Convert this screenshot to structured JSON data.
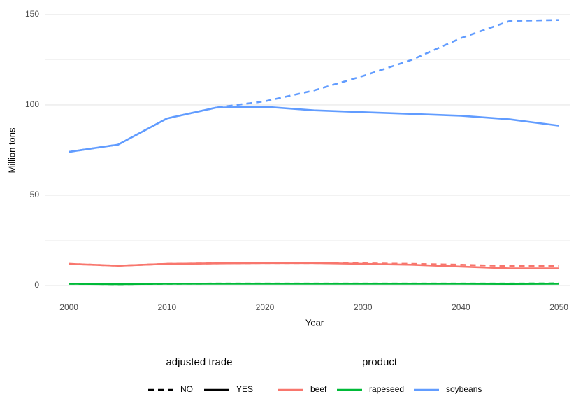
{
  "chart_data": {
    "type": "line",
    "x_label": "Year",
    "y_label": "Million tons",
    "x": [
      2000,
      2005,
      2010,
      2015,
      2020,
      2025,
      2030,
      2035,
      2040,
      2045,
      2050
    ],
    "xlim": [
      1997.6,
      2051.1
    ],
    "xticks": [
      2000,
      2010,
      2020,
      2030,
      2040,
      2050
    ],
    "ylim": [
      -2.7,
      151.9
    ],
    "yticks": [
      0,
      50,
      100,
      150
    ],
    "minor_yticks": [
      25,
      75,
      125
    ],
    "grid": true,
    "legends": [
      {
        "title": "adjusted trade",
        "entries": [
          {
            "label": "NO",
            "dash": "8,6"
          },
          {
            "label": "YES",
            "dash": "none"
          }
        ]
      },
      {
        "title": "product",
        "entries": [
          {
            "label": "beef",
            "color": "#F8766D"
          },
          {
            "label": "rapeseed",
            "color": "#00BA38"
          },
          {
            "label": "soybeans",
            "color": "#619CFF"
          }
        ]
      }
    ],
    "legend_position": "bottom",
    "series": [
      {
        "product": "beef",
        "adjusted trade": "NO",
        "color": "#F8766D",
        "dash": "8,6",
        "values": [
          12,
          11,
          12,
          12.3,
          12.5,
          12.5,
          12.3,
          12,
          11.5,
          10.8,
          11
        ]
      },
      {
        "product": "beef",
        "adjusted trade": "YES",
        "color": "#F8766D",
        "dash": "none",
        "values": [
          12,
          11,
          12,
          12.3,
          12.5,
          12.5,
          12,
          11.5,
          10.5,
          9.5,
          9.5
        ]
      },
      {
        "product": "rapeseed",
        "adjusted trade": "NO",
        "color": "#00BA38",
        "dash": "8,6",
        "values": [
          1,
          0.8,
          1,
          1.1,
          1.1,
          1.1,
          1.1,
          1.1,
          1.1,
          1.1,
          1.2
        ]
      },
      {
        "product": "rapeseed",
        "adjusted trade": "YES",
        "color": "#00BA38",
        "dash": "none",
        "values": [
          1,
          0.8,
          1,
          1,
          1,
          1,
          1,
          1,
          1,
          0.9,
          1
        ]
      },
      {
        "product": "soybeans",
        "adjusted trade": "NO",
        "color": "#619CFF",
        "dash": "8,6",
        "values": [
          74,
          78,
          92.5,
          98.5,
          102,
          108,
          116,
          125,
          137,
          146.5,
          147
        ]
      },
      {
        "product": "soybeans",
        "adjusted trade": "YES",
        "color": "#619CFF",
        "dash": "none",
        "values": [
          74,
          78,
          92.5,
          98.5,
          99,
          97,
          96,
          95,
          94,
          92,
          88.5
        ]
      }
    ]
  }
}
